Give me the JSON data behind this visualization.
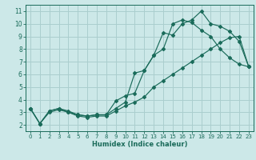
{
  "xlabel": "Humidex (Indice chaleur)",
  "background_color": "#cce8e8",
  "grid_color": "#aacece",
  "line_color": "#1a6b5a",
  "xlim": [
    -0.5,
    23.5
  ],
  "ylim": [
    1.5,
    11.5
  ],
  "xticks": [
    0,
    1,
    2,
    3,
    4,
    5,
    6,
    7,
    8,
    9,
    10,
    11,
    12,
    13,
    14,
    15,
    16,
    17,
    18,
    19,
    20,
    21,
    22,
    23
  ],
  "yticks": [
    2,
    3,
    4,
    5,
    6,
    7,
    8,
    9,
    10,
    11
  ],
  "hours": [
    0,
    1,
    2,
    3,
    4,
    5,
    6,
    7,
    8,
    9,
    10,
    11,
    12,
    13,
    14,
    15,
    16,
    17,
    18,
    19,
    20,
    21,
    22,
    23
  ],
  "line1": [
    3.3,
    2.1,
    3.1,
    3.3,
    3.1,
    2.8,
    2.7,
    2.8,
    2.8,
    3.9,
    4.3,
    4.5,
    6.3,
    7.5,
    9.3,
    9.1,
    10.0,
    10.3,
    11.0,
    10.0,
    9.8,
    9.4,
    8.6,
    6.6
  ],
  "line2": [
    3.3,
    2.1,
    3.1,
    3.3,
    3.0,
    2.8,
    2.7,
    2.8,
    2.8,
    3.3,
    3.8,
    6.1,
    6.3,
    7.5,
    8.0,
    10.0,
    10.3,
    10.1,
    9.5,
    9.0,
    8.0,
    7.3,
    6.8,
    6.6
  ],
  "line3": [
    3.3,
    2.1,
    3.0,
    3.2,
    3.0,
    2.7,
    2.6,
    2.7,
    2.7,
    3.1,
    3.5,
    3.8,
    4.2,
    5.0,
    5.5,
    6.0,
    6.5,
    7.0,
    7.5,
    8.0,
    8.5,
    8.9,
    9.0,
    6.6
  ]
}
